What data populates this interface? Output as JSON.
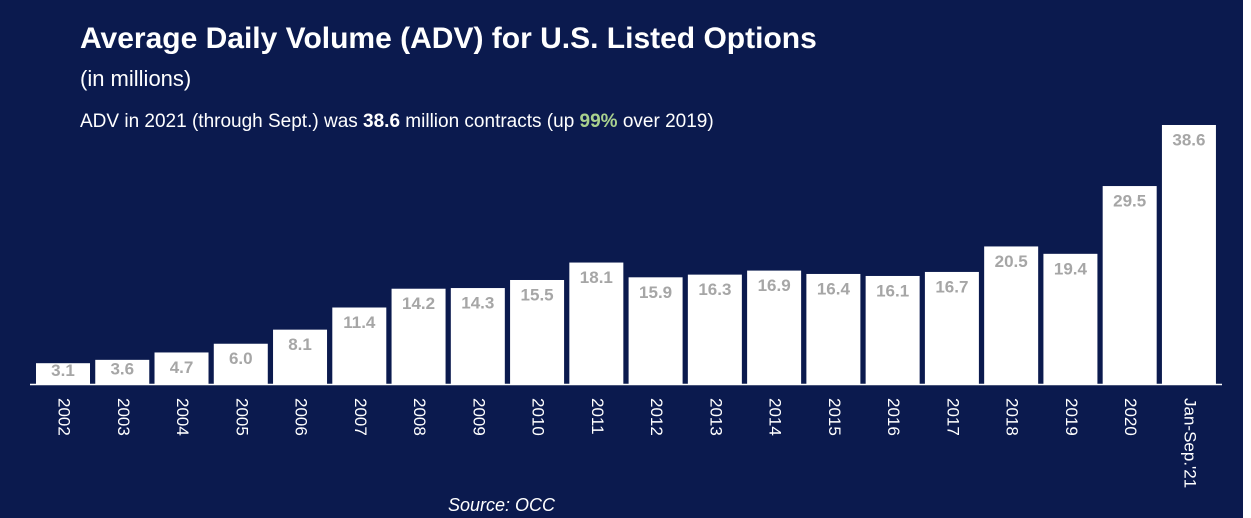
{
  "chart_data": {
    "type": "bar",
    "title": "Average Daily Volume (ADV) for U.S. Listed Options",
    "unit_note": "(in millions)",
    "subtitle_parts": [
      "ADV in 2021 (through Sept.) was ",
      "38.6",
      " million contracts (up ",
      "99%",
      " over 2019)"
    ],
    "source": "Source: OCC",
    "categories": [
      "2002",
      "2003",
      "2004",
      "2005",
      "2006",
      "2007",
      "2008",
      "2009",
      "2010",
      "2011",
      "2012",
      "2013",
      "2014",
      "2015",
      "2016",
      "2017",
      "2018",
      "2019",
      "2020",
      "Jan-Sep.'21"
    ],
    "values": [
      3.1,
      3.6,
      4.7,
      6.0,
      8.1,
      11.4,
      14.2,
      14.3,
      15.5,
      18.1,
      15.9,
      16.3,
      16.9,
      16.4,
      16.1,
      16.7,
      20.5,
      19.4,
      29.5,
      38.6
    ],
    "value_labels": [
      "3.1",
      "3.6",
      "4.7",
      "6.0",
      "8.1",
      "11.4",
      "14.2",
      "14.3",
      "15.5",
      "18.1",
      "15.9",
      "16.3",
      "16.9",
      "16.4",
      "16.1",
      "16.7",
      "20.5",
      "19.4",
      "29.5",
      "38.6"
    ],
    "color": "#ffffff"
  }
}
